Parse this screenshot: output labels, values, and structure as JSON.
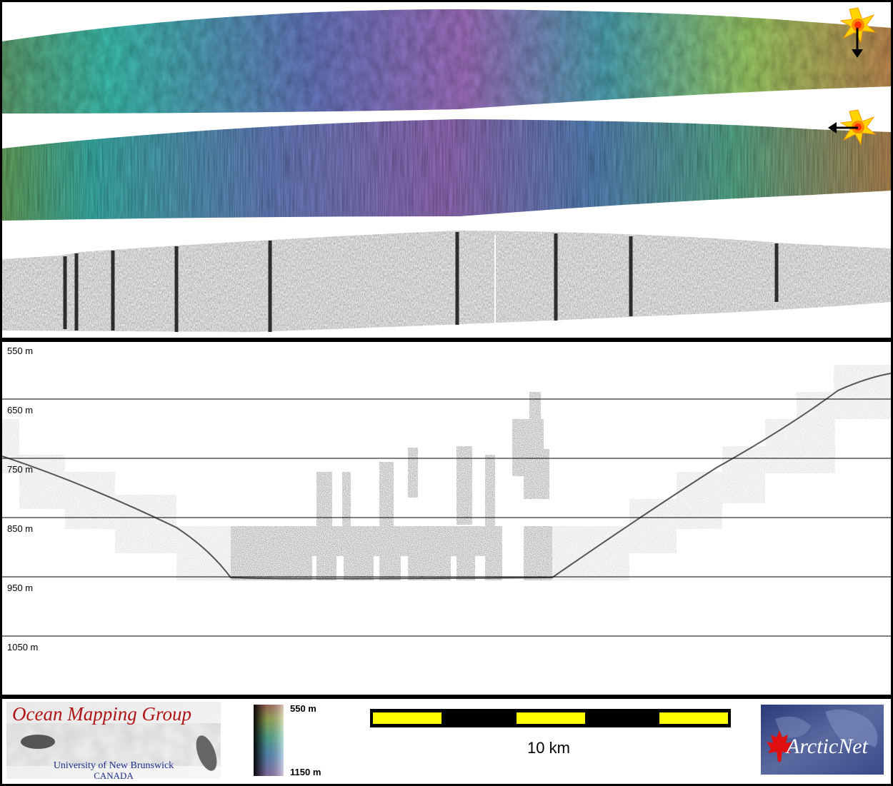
{
  "profile": {
    "depth_labels": [
      "550 m",
      "650 m",
      "750 m",
      "850 m",
      "950 m",
      "1050 m"
    ]
  },
  "colorbar": {
    "top_label": "550 m",
    "bottom_label": "1150 m"
  },
  "scalebar": {
    "label": "10 km",
    "colors": {
      "fill": "#ffff00",
      "frame": "#000000"
    }
  },
  "logos": {
    "omg": {
      "title": "Ocean Mapping Group",
      "line1": "University of New Brunswick",
      "line2": "CANADA"
    },
    "arcticnet": {
      "text": "ArcticNet"
    }
  },
  "sun_icons": [
    "sun-icon",
    "sun-icon"
  ],
  "arrow_icons": [
    "arrow-down-icon",
    "arrow-left-icon"
  ],
  "colors": {
    "ramp": [
      "#6aa070",
      "#3ec0b8",
      "#6b7cc0",
      "#a074c0",
      "#4aa4b0",
      "#9ccf6a",
      "#c08a50"
    ],
    "depth_line": "#000000",
    "title_red": "#b01515"
  }
}
